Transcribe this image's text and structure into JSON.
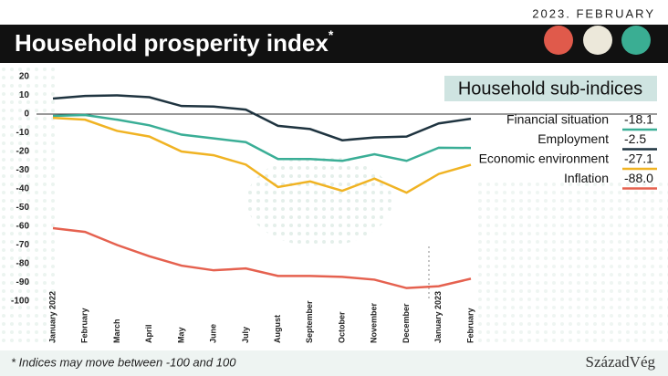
{
  "date_label": "2023. FEBRUARY",
  "footnote": "* Indices may move between -100 and 100",
  "logo": "SzázadVég",
  "chart_data": {
    "type": "line",
    "title": "Household prosperity index",
    "title_mark": "*",
    "legend_title": "Household sub-indices",
    "categories": [
      "January 2022",
      "February",
      "March",
      "April",
      "May",
      "June",
      "July",
      "August",
      "September",
      "October",
      "November",
      "December",
      "January 2023",
      "February"
    ],
    "ylim": [
      -100,
      20
    ],
    "yticks": [
      20,
      10,
      0,
      -10,
      -20,
      -30,
      -40,
      -50,
      -60,
      -70,
      -80,
      -90,
      -100
    ],
    "series": [
      {
        "name": "Financial situation",
        "color": "#3aae96",
        "values": [
          -1,
          -0.5,
          -3,
          -6,
          -11,
          -13,
          -15,
          -24,
          -24,
          -25,
          -21.5,
          -25,
          -18,
          -18.1
        ],
        "value_labels": [
          null,
          null,
          null,
          null,
          null,
          null,
          null,
          null,
          null,
          null,
          null,
          null,
          null,
          "-18.1"
        ]
      },
      {
        "name": "Employment",
        "color": "#1f3440",
        "values": [
          8.3,
          9.7,
          10,
          9,
          4.3,
          4,
          2.4,
          -6.3,
          -8,
          -14,
          -12.5,
          -12,
          -5,
          -2.5
        ],
        "value_labels": [
          null,
          null,
          null,
          null,
          null,
          null,
          null,
          null,
          null,
          null,
          null,
          null,
          null,
          "-2.5"
        ]
      },
      {
        "name": "Economic environment",
        "color": "#f0b323",
        "values": [
          -2,
          -3,
          -9,
          -12,
          -20,
          -22,
          -27,
          -39,
          -36,
          -41,
          -34.5,
          -42,
          -32,
          -27.1
        ],
        "value_labels": [
          null,
          null,
          null,
          null,
          null,
          null,
          null,
          null,
          null,
          null,
          null,
          null,
          null,
          "-27.1"
        ]
      },
      {
        "name": "Inflation",
        "color": "#e5614f",
        "values": [
          -61,
          -63,
          -70,
          -76,
          -81,
          -83.5,
          -82.5,
          -86.5,
          -86.5,
          -87,
          -88.5,
          -93,
          -92,
          -88.0
        ],
        "value_labels": [
          null,
          null,
          null,
          null,
          null,
          null,
          null,
          null,
          null,
          null,
          null,
          null,
          null,
          "-88.0"
        ]
      }
    ]
  }
}
